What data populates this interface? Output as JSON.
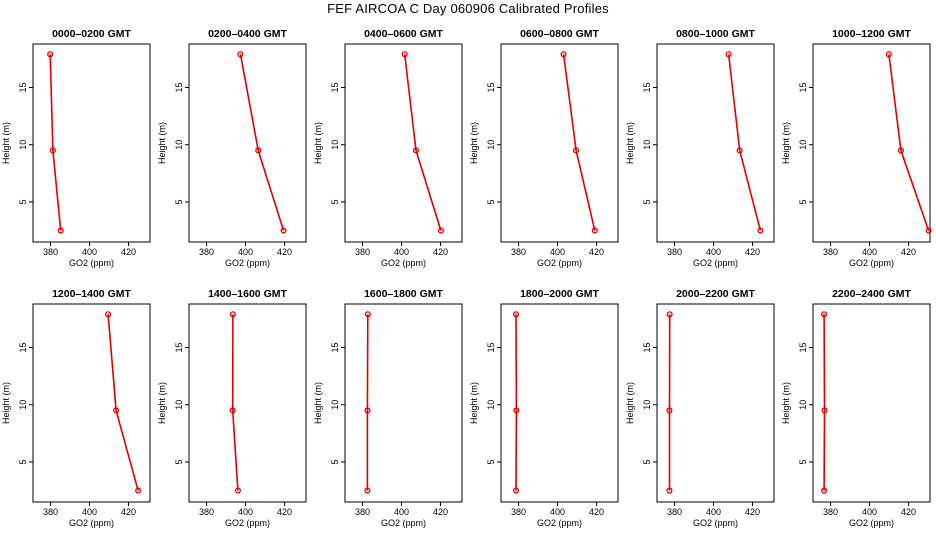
{
  "figure": {
    "title": "FEF AIRCOA C  Day 060906  Calibrated Profiles"
  },
  "colors": {
    "series": "#e00000",
    "axis": "#000000",
    "background": "#ffffff"
  },
  "chart_data": [
    {
      "type": "line",
      "title": "0000–0200 GMT",
      "xlabel": "GO2 (ppm)",
      "ylabel": "Height (m)",
      "xlim": [
        371,
        431
      ],
      "ylim": [
        1.5,
        18.8
      ],
      "xticks": [
        380,
        400,
        420
      ],
      "yticks": [
        5,
        10,
        15
      ],
      "x": [
        379.8,
        381.2,
        385.2
      ],
      "y": [
        17.9,
        9.5,
        2.5
      ]
    },
    {
      "type": "line",
      "title": "0200–0400 GMT",
      "xlabel": "GO2 (ppm)",
      "ylabel": "Height (m)",
      "xlim": [
        371,
        431
      ],
      "ylim": [
        1.5,
        18.8
      ],
      "xticks": [
        380,
        400,
        420
      ],
      "yticks": [
        5,
        10,
        15
      ],
      "x": [
        397.4,
        406.5,
        419.5
      ],
      "y": [
        17.9,
        9.5,
        2.5
      ]
    },
    {
      "type": "line",
      "title": "0400–0600 GMT",
      "xlabel": "GO2 (ppm)",
      "ylabel": "Height (m)",
      "xlim": [
        371,
        431
      ],
      "ylim": [
        1.5,
        18.8
      ],
      "xticks": [
        380,
        400,
        420
      ],
      "yticks": [
        5,
        10,
        15
      ],
      "x": [
        401.6,
        407.4,
        420.2
      ],
      "y": [
        17.9,
        9.5,
        2.5
      ]
    },
    {
      "type": "line",
      "title": "0600–0800 GMT",
      "xlabel": "GO2 (ppm)",
      "ylabel": "Height (m)",
      "xlim": [
        371,
        431
      ],
      "ylim": [
        1.5,
        18.8
      ],
      "xticks": [
        380,
        400,
        420
      ],
      "yticks": [
        5,
        10,
        15
      ],
      "x": [
        403.1,
        409.5,
        419.1
      ],
      "y": [
        17.9,
        9.5,
        2.5
      ]
    },
    {
      "type": "line",
      "title": "0800–1000 GMT",
      "xlabel": "GO2 (ppm)",
      "ylabel": "Height (m)",
      "xlim": [
        371,
        431
      ],
      "ylim": [
        1.5,
        18.8
      ],
      "xticks": [
        380,
        400,
        420
      ],
      "yticks": [
        5,
        10,
        15
      ],
      "x": [
        407.7,
        413.4,
        424.0
      ],
      "y": [
        17.9,
        9.5,
        2.5
      ]
    },
    {
      "type": "line",
      "title": "1000–1200 GMT",
      "xlabel": "GO2 (ppm)",
      "ylabel": "Height (m)",
      "xlim": [
        371,
        431
      ],
      "ylim": [
        1.5,
        18.8
      ],
      "xticks": [
        380,
        400,
        420
      ],
      "yticks": [
        5,
        10,
        15
      ],
      "x": [
        409.9,
        416.1,
        430.3
      ],
      "y": [
        17.9,
        9.5,
        2.5
      ]
    },
    {
      "type": "line",
      "title": "1200–1400 GMT",
      "xlabel": "GO2 (ppm)",
      "ylabel": "Height (m)",
      "xlim": [
        371,
        431
      ],
      "ylim": [
        1.5,
        18.8
      ],
      "xticks": [
        380,
        400,
        420
      ],
      "yticks": [
        5,
        10,
        15
      ],
      "x": [
        409.5,
        413.6,
        424.9
      ],
      "y": [
        17.9,
        9.5,
        2.5
      ]
    },
    {
      "type": "line",
      "title": "1400–1600 GMT",
      "xlabel": "GO2 (ppm)",
      "ylabel": "Height (m)",
      "xlim": [
        371,
        431
      ],
      "ylim": [
        1.5,
        18.8
      ],
      "xticks": [
        380,
        400,
        420
      ],
      "yticks": [
        5,
        10,
        15
      ],
      "x": [
        393.5,
        393.4,
        396.1
      ],
      "y": [
        17.9,
        9.5,
        2.5
      ]
    },
    {
      "type": "line",
      "title": "1600–1800 GMT",
      "xlabel": "GO2 (ppm)",
      "ylabel": "Height (m)",
      "xlim": [
        371,
        431
      ],
      "ylim": [
        1.5,
        18.8
      ],
      "xticks": [
        380,
        400,
        420
      ],
      "yticks": [
        5,
        10,
        15
      ],
      "x": [
        382.7,
        382.5,
        382.5
      ],
      "y": [
        17.9,
        9.5,
        2.5
      ]
    },
    {
      "type": "line",
      "title": "1800–2000 GMT",
      "xlabel": "GO2 (ppm)",
      "ylabel": "Height (m)",
      "xlim": [
        371,
        431
      ],
      "ylim": [
        1.5,
        18.8
      ],
      "xticks": [
        380,
        400,
        420
      ],
      "yticks": [
        5,
        10,
        15
      ],
      "x": [
        378.7,
        378.9,
        378.7
      ],
      "y": [
        17.9,
        9.5,
        2.5
      ]
    },
    {
      "type": "line",
      "title": "2000–2200 GMT",
      "xlabel": "GO2 (ppm)",
      "ylabel": "Height (m)",
      "xlim": [
        371,
        431
      ],
      "ylim": [
        1.5,
        18.8
      ],
      "xticks": [
        380,
        400,
        420
      ],
      "yticks": [
        5,
        10,
        15
      ],
      "x": [
        377.5,
        377.4,
        377.4
      ],
      "y": [
        17.9,
        9.5,
        2.5
      ]
    },
    {
      "type": "line",
      "title": "2200–2400 GMT",
      "xlabel": "GO2 (ppm)",
      "ylabel": "Height (m)",
      "xlim": [
        371,
        431
      ],
      "ylim": [
        1.5,
        18.8
      ],
      "xticks": [
        380,
        400,
        420
      ],
      "yticks": [
        5,
        10,
        15
      ],
      "x": [
        376.7,
        376.9,
        376.7
      ],
      "y": [
        17.9,
        9.5,
        2.5
      ]
    }
  ]
}
